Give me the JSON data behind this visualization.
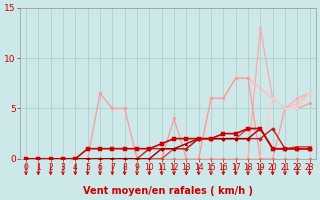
{
  "bg_color": "#cce8e8",
  "grid_color": "#aacccc",
  "xlabel": "Vent moyen/en rafales ( km/h )",
  "xlabel_color": "#cc0000",
  "tick_color": "#cc0000",
  "axis_color": "#999999",
  "xlim": [
    -0.5,
    23.5
  ],
  "ylim": [
    0,
    15
  ],
  "xticks": [
    0,
    1,
    2,
    3,
    4,
    5,
    6,
    7,
    8,
    9,
    10,
    11,
    12,
    13,
    14,
    15,
    16,
    17,
    18,
    19,
    20,
    21,
    22,
    23
  ],
  "yticks": [
    0,
    5,
    10,
    15
  ],
  "series": [
    {
      "x": [
        0,
        1,
        2,
        3,
        4,
        5,
        6,
        7,
        8,
        9,
        10,
        11,
        12,
        13,
        14,
        15,
        16,
        17,
        18,
        19,
        20,
        21,
        22,
        23
      ],
      "y": [
        0,
        0,
        0,
        0,
        0,
        0,
        0,
        0,
        0,
        0,
        0,
        0,
        0,
        0,
        0,
        0,
        0,
        0,
        0,
        13,
        6,
        5,
        6,
        6.5
      ],
      "color": "#ffaaaa",
      "lw": 0.9,
      "marker": "o",
      "ms": 2.0,
      "zorder": 2
    },
    {
      "x": [
        0,
        1,
        2,
        3,
        4,
        5,
        6,
        7,
        8,
        9,
        10,
        11,
        12,
        13,
        14,
        15,
        16,
        17,
        18,
        19,
        20,
        21,
        22,
        23
      ],
      "y": [
        0,
        0,
        0,
        0,
        0,
        0,
        0,
        0,
        0,
        0,
        0,
        0,
        0,
        0,
        0,
        6,
        6,
        8,
        8,
        7,
        6,
        5,
        5.5,
        6.5
      ],
      "color": "#ffbbbb",
      "lw": 0.9,
      "marker": "o",
      "ms": 2.0,
      "zorder": 2
    },
    {
      "x": [
        0,
        1,
        2,
        3,
        4,
        5,
        6,
        7,
        8,
        9,
        10,
        11,
        12,
        13,
        14,
        15,
        16,
        17,
        18,
        19,
        20,
        21,
        22,
        23
      ],
      "y": [
        0,
        0,
        0,
        0,
        0,
        0,
        6.5,
        5,
        5,
        0,
        0,
        0,
        4,
        0,
        0,
        6,
        6,
        8,
        8,
        0,
        0,
        5,
        5,
        5.5
      ],
      "color": "#ff9999",
      "lw": 0.9,
      "marker": "o",
      "ms": 2.0,
      "zorder": 2
    },
    {
      "x": [
        0,
        1,
        2,
        3,
        4,
        5,
        6,
        7,
        8,
        9,
        10,
        11,
        12,
        13,
        14,
        15,
        16,
        17,
        18,
        19,
        20,
        21,
        22,
        23
      ],
      "y": [
        0,
        0,
        0,
        0,
        0,
        0,
        0,
        0,
        0,
        0,
        0,
        0,
        0,
        0,
        0,
        0,
        0,
        0,
        0,
        0,
        6,
        5,
        5,
        6.5
      ],
      "color": "#ffcccc",
      "lw": 0.9,
      "marker": "o",
      "ms": 2.0,
      "zorder": 2
    },
    {
      "x": [
        0,
        1,
        2,
        3,
        4,
        5,
        6,
        7,
        8,
        9,
        10,
        11,
        12,
        13,
        14,
        15,
        16,
        17,
        18,
        19,
        20,
        21,
        22,
        23
      ],
      "y": [
        0,
        0,
        0,
        0,
        0,
        0,
        0,
        0,
        0,
        0,
        0,
        0,
        0,
        0,
        0,
        0,
        0,
        0,
        0,
        0,
        0,
        0,
        0,
        0
      ],
      "color": "#ffdddd",
      "lw": 0.9,
      "marker": "o",
      "ms": 2.0,
      "zorder": 2
    },
    {
      "x": [
        0,
        1,
        2,
        3,
        4,
        5,
        6,
        7,
        8,
        9,
        10,
        11,
        12,
        13,
        14,
        15,
        16,
        17,
        18,
        19,
        20,
        21,
        22,
        23
      ],
      "y": [
        0,
        0,
        0,
        0,
        0,
        0,
        0,
        0,
        0,
        0,
        0,
        0,
        1,
        1,
        2,
        2,
        2,
        2,
        3,
        3,
        1,
        1,
        1.2,
        1.2
      ],
      "color": "#dd4444",
      "lw": 1.0,
      "marker": "o",
      "ms": 2.0,
      "zorder": 3
    },
    {
      "x": [
        0,
        1,
        2,
        3,
        4,
        5,
        6,
        7,
        8,
        9,
        10,
        11,
        12,
        13,
        14,
        15,
        16,
        17,
        18,
        19,
        20,
        21,
        22,
        23
      ],
      "y": [
        0,
        0,
        0,
        0,
        0,
        0,
        0,
        0,
        0,
        0,
        1,
        1,
        1,
        1,
        2,
        2,
        2,
        2,
        2,
        2,
        3,
        1,
        1,
        1
      ],
      "color": "#bb2222",
      "lw": 1.0,
      "marker": "D",
      "ms": 2.0,
      "zorder": 3
    },
    {
      "x": [
        0,
        1,
        2,
        3,
        4,
        5,
        6,
        7,
        8,
        9,
        10,
        11,
        12,
        13,
        14,
        15,
        16,
        17,
        18,
        19,
        20,
        21,
        22,
        23
      ],
      "y": [
        0,
        0,
        0,
        0,
        0,
        0,
        0,
        0,
        0,
        0,
        0,
        1,
        1,
        1.5,
        2,
        2,
        2,
        2,
        2,
        3,
        1,
        1,
        1,
        1
      ],
      "color": "#990000",
      "lw": 1.0,
      "marker": "^",
      "ms": 2.0,
      "zorder": 3
    },
    {
      "x": [
        0,
        1,
        2,
        3,
        4,
        5,
        6,
        7,
        8,
        9,
        10,
        11,
        12,
        13,
        14,
        15,
        16,
        17,
        18,
        19,
        20,
        21,
        22,
        23
      ],
      "y": [
        0,
        0,
        0,
        0,
        0,
        1,
        1,
        1,
        1,
        1,
        1,
        1.5,
        2,
        2,
        2,
        2,
        2.5,
        2.5,
        3,
        3,
        1,
        1,
        1,
        1
      ],
      "color": "#cc0000",
      "lw": 1.2,
      "marker": "s",
      "ms": 2.5,
      "zorder": 4
    },
    {
      "x": [
        0,
        1,
        2,
        3,
        4,
        5,
        6,
        7,
        8,
        9,
        10,
        11,
        12,
        13,
        14,
        15,
        16,
        17,
        18,
        19,
        20,
        21,
        22,
        23
      ],
      "y": [
        0,
        0,
        0,
        0,
        0,
        0,
        0,
        0,
        0,
        0,
        0,
        0,
        0,
        0,
        0,
        0,
        0,
        0,
        0,
        0,
        0,
        0,
        0,
        0
      ],
      "color": "#ff6666",
      "lw": 0.9,
      "marker": "o",
      "ms": 2.0,
      "zorder": 2
    }
  ],
  "label_fontsize": 7.0
}
